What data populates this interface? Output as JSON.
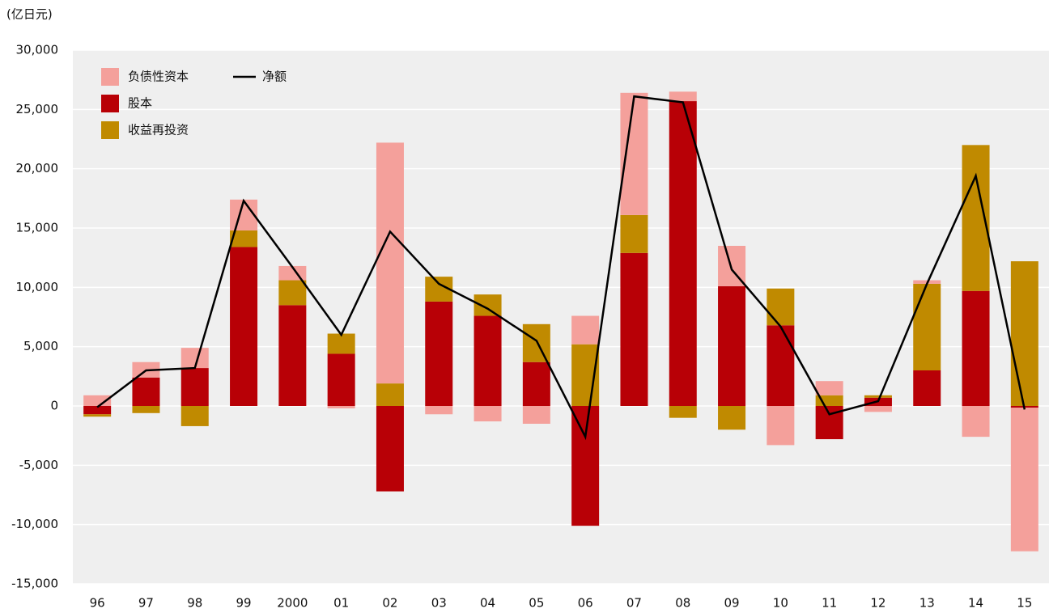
{
  "chart_data": {
    "type": "bar",
    "stacked": true,
    "unit_label": "(亿日元)",
    "categories": [
      "96",
      "97",
      "98",
      "99",
      "2000",
      "01",
      "02",
      "03",
      "04",
      "05",
      "06",
      "07",
      "08",
      "09",
      "10",
      "11",
      "12",
      "13",
      "14",
      "15"
    ],
    "series": [
      {
        "name": "股本",
        "color": "#b80006",
        "values": [
          -700,
          2400,
          3200,
          13400,
          8500,
          4400,
          -7200,
          8800,
          7600,
          3700,
          -10100,
          12900,
          25700,
          10100,
          6800,
          -2800,
          700,
          3000,
          9700,
          -150
        ]
      },
      {
        "name": "收益再投资",
        "color": "#c08a00",
        "values": [
          -200,
          -600,
          -1700,
          1400,
          2100,
          1700,
          1900,
          2100,
          1800,
          3200,
          5200,
          3200,
          -1000,
          -2000,
          3100,
          900,
          200,
          7300,
          12300,
          12200
        ]
      },
      {
        "name": "负债性资本",
        "color": "#f4a09b",
        "values": [
          900,
          1300,
          1700,
          2600,
          1200,
          -200,
          20300,
          -700,
          -1300,
          -1500,
          2400,
          10300,
          800,
          3400,
          -3300,
          1200,
          -500,
          300,
          -2600,
          -12100
        ]
      },
      {
        "name": "净额",
        "type": "line",
        "color": "#000000",
        "values": [
          -100,
          3000,
          3200,
          17300,
          11700,
          6000,
          14700,
          10300,
          8200,
          5500,
          -2600,
          26100,
          25600,
          11500,
          6700,
          -700,
          400,
          10300,
          19400,
          -300
        ]
      }
    ],
    "ylim": [
      -15000,
      30000
    ],
    "yticks": [
      {
        "value": -15000,
        "label": "-15,000"
      },
      {
        "value": -10000,
        "label": "-10,000"
      },
      {
        "value": -5000,
        "label": "-5,000"
      },
      0,
      {
        "value": 5000,
        "label": "5,000"
      },
      {
        "value": 10000,
        "label": "10,000"
      },
      {
        "value": 15000,
        "label": "15,000"
      },
      {
        "value": 20000,
        "label": "20,000"
      },
      {
        "value": 25000,
        "label": "25,000"
      },
      {
        "value": 30000,
        "label": "30,000"
      }
    ],
    "grid": true,
    "background": "#efefef",
    "legend_position": "upper left"
  }
}
